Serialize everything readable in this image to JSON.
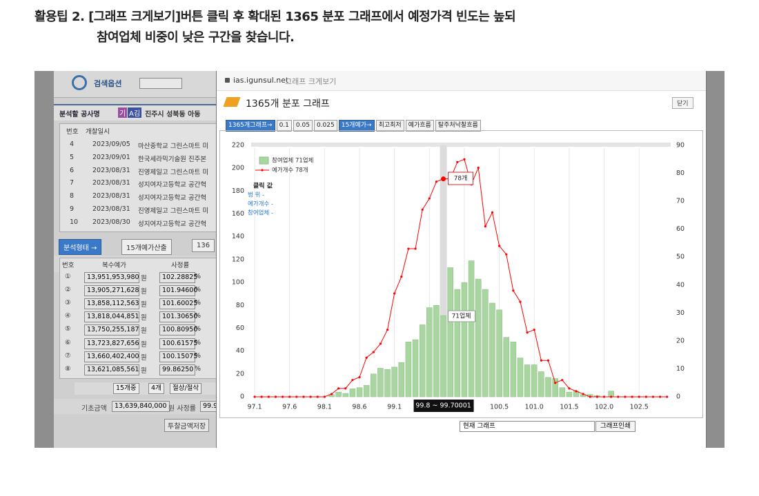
{
  "caption": {
    "line1": "활용팁 2. [그래프 크게보기]버튼 클릭 후 확대된 1365 분포 그래프에서 예정가격 빈도는 높되",
    "line2": "참여업체 비중이 낮은 구간을 찾습니다."
  },
  "left_panel": {
    "search_label": "검색옵션",
    "project_label": "분석할 공사명",
    "badge1": "기",
    "badge2": "A김",
    "project_name": "진주시 성북동 아동",
    "list_header": [
      "번호",
      "개찰일시"
    ],
    "list_rows": [
      [
        "4",
        "2023/09/05",
        "마산중학교 그린스마트 미"
      ],
      [
        "5",
        "2023/09/01",
        "한국세라믹기술원 진주본"
      ],
      [
        "6",
        "2023/08/31",
        "진영제일고 그린스마트 미"
      ],
      [
        "7",
        "2023/08/31",
        "성지여자고등학교 공간혁"
      ],
      [
        "8",
        "2023/08/31",
        "성지여자고등학교 공간혁"
      ],
      [
        "9",
        "2023/08/31",
        "진영제일고 그린스마트 미"
      ],
      [
        "10",
        "2023/08/30",
        "성지여자고등학교 공간혁"
      ]
    ],
    "analysis_button": "분석형태 →",
    "calc_button": "15개예가산출",
    "other_button": "136",
    "price_header": [
      "번호",
      "복수예가",
      "사정률"
    ],
    "won": "원",
    "pct": "%",
    "price_rows": [
      [
        "①",
        "13,951,953,980",
        "102.28825"
      ],
      [
        "②",
        "13,905,271,628",
        "101.94600"
      ],
      [
        "③",
        "13,858,112,563",
        "101.60025"
      ],
      [
        "④",
        "13,818,044,851",
        "101.30650"
      ],
      [
        "⑤",
        "13,750,255,187",
        "100.80950"
      ],
      [
        "⑥",
        "13,723,827,656",
        "100.61575"
      ],
      [
        "⑦",
        "13,660,402,400",
        "100.15075"
      ],
      [
        "⑧",
        "13,621,085,561",
        "99.86250"
      ]
    ],
    "selects": [
      "15개중",
      "4개",
      "절상/절삭"
    ],
    "base_label": "기초금액",
    "base_value": "13,639,840,000",
    "rate_label": "원 사정률",
    "rate_value": "99.9",
    "save_button": "투찰금액저장"
  },
  "popup": {
    "url": "ias.igunsul.net",
    "page_title": "그래프 크게보기",
    "title": "1365개 분포 그래프",
    "close": "닫기",
    "buttons": [
      "1365개그래프→",
      "0.1",
      "0.05",
      "0.025",
      "15개예가→",
      "최고최저",
      "예가흐름",
      "탈주처낙찰흐름"
    ],
    "select": "현재 그래프",
    "print": "그래프인쇄"
  },
  "chart_data": {
    "type": "bar",
    "categories": [
      "97.1",
      null,
      null,
      null,
      null,
      "97.6",
      null,
      null,
      null,
      null,
      "98.1",
      null,
      null,
      null,
      null,
      "98.6",
      null,
      null,
      null,
      null,
      "99.1",
      null,
      null,
      null,
      null,
      null,
      null,
      null,
      null,
      null,
      null,
      null,
      null,
      null,
      null,
      "100.5",
      null,
      null,
      null,
      null,
      "101.0",
      null,
      null,
      null,
      null,
      "101.5",
      null,
      null,
      null,
      null,
      "102.0",
      null,
      null,
      null,
      null,
      "102.5",
      null,
      null,
      null,
      null
    ],
    "series": [
      {
        "name": "참여업체 71업체",
        "type": "bar",
        "axis": "y",
        "color": "#a9d5a1",
        "values": [
          0,
          0,
          0,
          0,
          0,
          0,
          0,
          0,
          0,
          0,
          0,
          2,
          4,
          3,
          7,
          8,
          10,
          20,
          25,
          24,
          26,
          30,
          48,
          50,
          63,
          78,
          80,
          71,
          113,
          94,
          100,
          119,
          103,
          94,
          82,
          76,
          52,
          48,
          34,
          28,
          28,
          22,
          17,
          16,
          8,
          4,
          5,
          2,
          2,
          1,
          0,
          5,
          0,
          0,
          0,
          0,
          0,
          0,
          0,
          0
        ]
      },
      {
        "name": "예가개수 78개",
        "type": "line",
        "axis": "y2",
        "color": "#ff0000",
        "values": [
          0,
          0,
          0,
          0,
          0,
          0,
          0,
          0,
          0,
          0,
          0,
          1,
          3,
          3,
          6,
          7,
          14,
          16,
          19,
          24,
          37,
          43,
          53,
          53,
          67,
          71,
          77,
          78,
          78,
          84,
          85,
          76,
          82,
          61,
          66,
          54,
          51,
          38,
          34,
          23,
          24,
          13,
          13,
          5,
          6,
          3,
          2,
          1,
          0,
          0,
          0,
          0,
          0,
          0,
          0,
          0,
          0,
          0,
          0,
          0
        ]
      }
    ],
    "ylim": [
      0,
      220
    ],
    "yticks": [
      0,
      20,
      40,
      60,
      80,
      100,
      120,
      140,
      160,
      180,
      200,
      220
    ],
    "y2lim": [
      0,
      90
    ],
    "y2ticks": [
      0,
      10,
      20,
      30,
      40,
      50,
      60,
      70,
      80,
      90
    ],
    "grid": true,
    "info": {
      "title": "클릭 값",
      "rows": [
        "범   위 -",
        "예가개수 -",
        "참여업체 -"
      ]
    },
    "tooltip": {
      "range": "99.8 ~ 99.70001",
      "count": "78개",
      "firms": "71업체"
    }
  }
}
